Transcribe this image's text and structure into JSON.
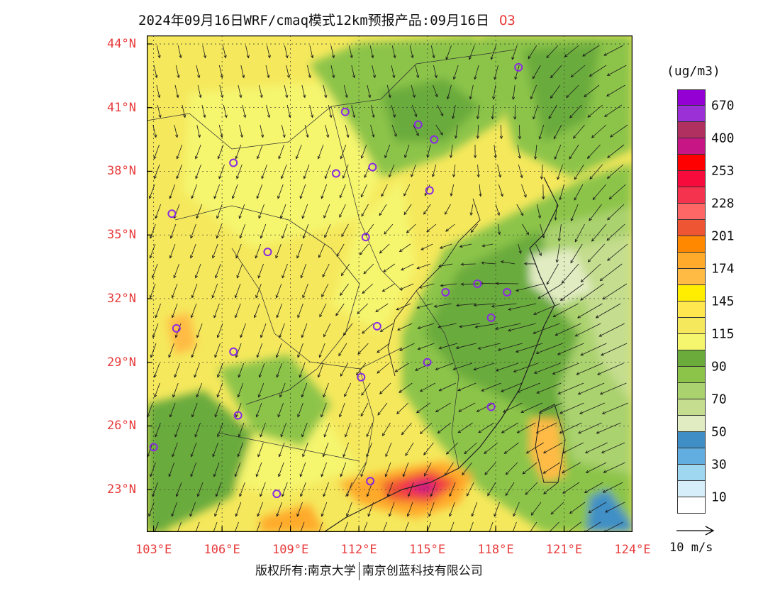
{
  "header": {
    "title": "2024年09月16日WRF/cmaq模式12km预报产品:09月16日",
    "species": "O3"
  },
  "map": {
    "lat_ticks": [
      {
        "value": 44,
        "label": "44°N"
      },
      {
        "value": 41,
        "label": "41°N"
      },
      {
        "value": 38,
        "label": "38°N"
      },
      {
        "value": 35,
        "label": "35°N"
      },
      {
        "value": 32,
        "label": "32°N"
      },
      {
        "value": 29,
        "label": "29°N"
      },
      {
        "value": 26,
        "label": "26°N"
      },
      {
        "value": 23,
        "label": "23°N"
      }
    ],
    "lon_ticks": [
      {
        "value": 103,
        "label": "103°E"
      },
      {
        "value": 106,
        "label": "106°E"
      },
      {
        "value": 109,
        "label": "109°E"
      },
      {
        "value": 112,
        "label": "112°E"
      },
      {
        "value": 115,
        "label": "115°E"
      },
      {
        "value": 118,
        "label": "118°E"
      },
      {
        "value": 121,
        "label": "121°E"
      },
      {
        "value": 124,
        "label": "124°E"
      }
    ],
    "city_markers": [
      {
        "lon": 119.0,
        "lat": 42.9
      },
      {
        "lon": 111.4,
        "lat": 40.8
      },
      {
        "lon": 114.6,
        "lat": 40.2
      },
      {
        "lon": 115.3,
        "lat": 39.5
      },
      {
        "lon": 106.5,
        "lat": 38.4
      },
      {
        "lon": 111.0,
        "lat": 37.9
      },
      {
        "lon": 112.6,
        "lat": 38.2
      },
      {
        "lon": 115.1,
        "lat": 37.1
      },
      {
        "lon": 103.8,
        "lat": 36.0
      },
      {
        "lon": 112.3,
        "lat": 34.9
      },
      {
        "lon": 108.0,
        "lat": 34.2
      },
      {
        "lon": 115.8,
        "lat": 32.3
      },
      {
        "lon": 117.2,
        "lat": 32.7
      },
      {
        "lon": 118.5,
        "lat": 32.3
      },
      {
        "lon": 117.8,
        "lat": 31.1
      },
      {
        "lon": 104.0,
        "lat": 30.6
      },
      {
        "lon": 112.8,
        "lat": 30.7
      },
      {
        "lon": 106.5,
        "lat": 29.5
      },
      {
        "lon": 115.0,
        "lat": 29.0
      },
      {
        "lon": 112.1,
        "lat": 28.3
      },
      {
        "lon": 106.7,
        "lat": 26.5
      },
      {
        "lon": 117.8,
        "lat": 26.9
      },
      {
        "lon": 103.0,
        "lat": 25.0
      },
      {
        "lon": 112.5,
        "lat": 23.4
      },
      {
        "lon": 108.4,
        "lat": 22.8
      }
    ]
  },
  "legend": {
    "unit": "(ug/m3)",
    "colors": [
      "#9400d3",
      "#9b30d6",
      "#b03060",
      "#c71585",
      "#ff0000",
      "#f70a3c",
      "#f5334f",
      "#ff6666",
      "#ee5533",
      "#ff8800",
      "#ffaa2a",
      "#ffbb44",
      "#ffee00",
      "#ffe84f",
      "#f5e85c",
      "#f5f56e",
      "#6aab3c",
      "#8cc44a",
      "#aad26e",
      "#c4dd8e",
      "#e2ecc2",
      "#3f8fc6",
      "#62aee0",
      "#9fd6f0",
      "#d6eefa",
      "#ffffff"
    ],
    "labels": [
      {
        "text": "670",
        "boundary": 1
      },
      {
        "text": "400",
        "boundary": 3
      },
      {
        "text": "253",
        "boundary": 5
      },
      {
        "text": "228",
        "boundary": 7
      },
      {
        "text": "201",
        "boundary": 9
      },
      {
        "text": "174",
        "boundary": 11
      },
      {
        "text": "145",
        "boundary": 13
      },
      {
        "text": "115",
        "boundary": 15
      },
      {
        "text": "90",
        "boundary": 17
      },
      {
        "text": "70",
        "boundary": 19
      },
      {
        "text": "50",
        "boundary": 21
      },
      {
        "text": "30",
        "boundary": 23
      },
      {
        "text": "10",
        "boundary": 25
      }
    ],
    "reference_vector": "10 m/s"
  },
  "footer": {
    "copyright_left": "版权所有:南京大学",
    "copyright_right": "南京创蓝科技有限公司"
  }
}
